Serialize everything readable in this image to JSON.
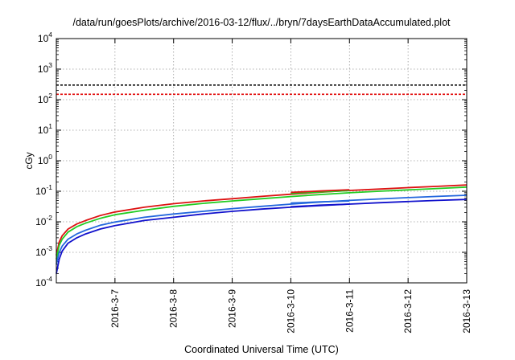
{
  "chart_data": {
    "type": "line",
    "title": "/data/run/goesPlots/archive/2016-03-12/flux/../bryn/7daysEarthDataAccumulated.plot",
    "xlabel": "Coordinated Universal Time (UTC)",
    "ylabel": "cGy",
    "yscale": "log",
    "ylim": [
      0.0001,
      10000
    ],
    "xlim": [
      0,
      7
    ],
    "grid": true,
    "y_tick_labels": [
      {
        "base": "10",
        "exp": "-4",
        "value": 0.0001
      },
      {
        "base": "10",
        "exp": "-3",
        "value": 0.001
      },
      {
        "base": "10",
        "exp": "-2",
        "value": 0.01
      },
      {
        "base": "10",
        "exp": "-1",
        "value": 0.1
      },
      {
        "base": "10",
        "exp": "0",
        "value": 1
      },
      {
        "base": "10",
        "exp": "1",
        "value": 10
      },
      {
        "base": "10",
        "exp": "2",
        "value": 100
      },
      {
        "base": "10",
        "exp": "3",
        "value": 1000
      },
      {
        "base": "10",
        "exp": "4",
        "value": 10000
      }
    ],
    "x_ticks": [
      {
        "label": "2016-3-7",
        "x": 1
      },
      {
        "label": "2016-3-8",
        "x": 2
      },
      {
        "label": "2016-3-9",
        "x": 3
      },
      {
        "label": "2016-3-10",
        "x": 4
      },
      {
        "label": "2016-3-11",
        "x": 5
      },
      {
        "label": "2016-3-12",
        "x": 6
      },
      {
        "label": "2016-3-13",
        "x": 7
      }
    ],
    "thresholds": [
      {
        "value": 300,
        "color": "#000000",
        "style": "dashed"
      },
      {
        "value": 150,
        "color": "#e00000",
        "style": "dashed"
      }
    ],
    "series": [
      {
        "color": "#dd1111",
        "x": [
          0,
          0.05,
          0.1,
          0.2,
          0.35,
          0.5,
          0.75,
          1,
          1.5,
          2,
          2.5,
          3,
          3.5,
          4,
          4.5,
          5,
          5.5,
          6,
          6.5,
          7
        ],
        "values": [
          0.0008,
          0.0022,
          0.0035,
          0.0058,
          0.0085,
          0.011,
          0.016,
          0.021,
          0.03,
          0.039,
          0.048,
          0.057,
          0.068,
          0.08,
          0.093,
          0.106,
          0.118,
          0.131,
          0.145,
          0.16
        ]
      },
      {
        "color": "#22cc22",
        "x": [
          0,
          0.05,
          0.1,
          0.2,
          0.35,
          0.5,
          0.75,
          1,
          1.5,
          2,
          2.5,
          3,
          3.5,
          4,
          4.5,
          5,
          5.5,
          6,
          6.5,
          7
        ],
        "values": [
          0.0006,
          0.0017,
          0.0027,
          0.0046,
          0.0069,
          0.009,
          0.013,
          0.017,
          0.024,
          0.032,
          0.04,
          0.048,
          0.057,
          0.067,
          0.078,
          0.089,
          0.1,
          0.111,
          0.123,
          0.136
        ]
      },
      {
        "color": "#2266dd",
        "x": [
          0,
          0.05,
          0.1,
          0.2,
          0.35,
          0.5,
          0.75,
          1,
          1.5,
          2,
          2.5,
          3,
          3.5,
          4,
          4.5,
          5,
          5.5,
          6,
          6.5,
          7
        ],
        "values": [
          0.0004,
          0.001,
          0.0016,
          0.0027,
          0.004,
          0.0053,
          0.0077,
          0.0098,
          0.014,
          0.018,
          0.022,
          0.027,
          0.032,
          0.038,
          0.044,
          0.05,
          0.056,
          0.062,
          0.068,
          0.074
        ]
      },
      {
        "color": "#1111cc",
        "x": [
          0,
          0.05,
          0.1,
          0.2,
          0.35,
          0.5,
          0.75,
          1,
          1.5,
          2,
          2.5,
          3,
          3.5,
          4,
          4.5,
          5,
          5.5,
          6,
          6.5,
          7
        ],
        "values": [
          0.0002,
          0.0006,
          0.0011,
          0.002,
          0.003,
          0.004,
          0.0058,
          0.0075,
          0.011,
          0.014,
          0.018,
          0.022,
          0.026,
          0.03,
          0.034,
          0.038,
          0.042,
          0.046,
          0.05,
          0.054
        ]
      },
      {
        "color": "#1111cc",
        "x": [
          4,
          4.5,
          5
        ],
        "values": [
          0.031,
          0.035,
          0.038
        ]
      },
      {
        "color": "#2266dd",
        "x": [
          4,
          4.5,
          5
        ],
        "values": [
          0.041,
          0.045,
          0.048
        ]
      },
      {
        "color": "#22cc22",
        "x": [
          4,
          4.5,
          5
        ],
        "values": [
          0.085,
          0.095,
          0.105
        ]
      },
      {
        "color": "#dd1111",
        "x": [
          4,
          4.5,
          5
        ],
        "values": [
          0.092,
          0.102,
          0.112
        ]
      }
    ]
  }
}
